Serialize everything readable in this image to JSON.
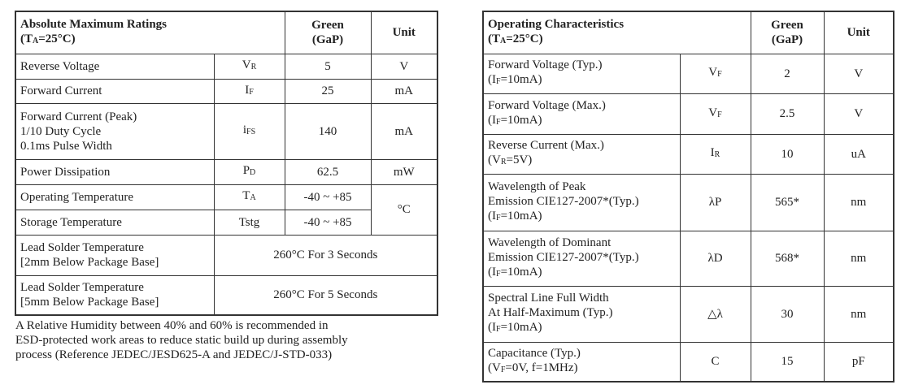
{
  "left": {
    "header": {
      "title": [
        "Absolute Maximum Ratings",
        [
          "(T",
          "A",
          "=25°C)"
        ]
      ],
      "green": [
        "Green",
        "(GaP)"
      ],
      "unit": [
        "Unit"
      ]
    },
    "rows": [
      {
        "param": [
          "Reverse Voltage"
        ],
        "symbol": [
          [
            "V",
            "R"
          ]
        ],
        "value": [
          "5"
        ],
        "unit": [
          "V"
        ]
      },
      {
        "param": [
          "Forward Current"
        ],
        "symbol": [
          [
            "I",
            "F"
          ]
        ],
        "value": [
          "25"
        ],
        "unit": [
          "mA"
        ]
      },
      {
        "param": [
          "Forward Current (Peak)",
          "1/10 Duty Cycle",
          "0.1ms Pulse Width"
        ],
        "symbol": [
          [
            "i",
            "FS"
          ]
        ],
        "value": [
          "140"
        ],
        "unit": [
          "mA"
        ]
      },
      {
        "param": [
          "Power Dissipation"
        ],
        "symbol": [
          [
            "P",
            "D"
          ]
        ],
        "value": [
          "62.5"
        ],
        "unit": [
          "mW"
        ]
      },
      {
        "param": [
          "Operating Temperature"
        ],
        "symbol": [
          [
            "T",
            "A"
          ]
        ],
        "value": [
          "-40 ~ +85"
        ],
        "unit": [
          "°C"
        ]
      },
      {
        "param": [
          "Storage Temperature"
        ],
        "symbol": [
          "Tstg"
        ],
        "value": [
          "-40 ~ +85"
        ]
      },
      {
        "param": [
          "Lead Solder Temperature",
          "[2mm Below Package Base]"
        ],
        "value": [
          "260°C For 3 Seconds"
        ]
      },
      {
        "param": [
          "Lead Solder Temperature",
          "[5mm Below Package Base]"
        ],
        "value": [
          "260°C For 5 Seconds"
        ]
      }
    ]
  },
  "note": [
    "A Relative Humidity between 40% and 60% is recommended in",
    "ESD-protected work areas to reduce static build up during assembly",
    "process (Reference JEDEC/JESD625-A and JEDEC/J-STD-033)"
  ],
  "right": {
    "header": {
      "title": [
        "Operating Characteristics",
        [
          "(T",
          "A",
          "=25°C)"
        ]
      ],
      "green": [
        "Green",
        "(GaP)"
      ],
      "unit": [
        "Unit"
      ]
    },
    "rows": [
      {
        "param": [
          "Forward Voltage (Typ.)",
          [
            "(I",
            "F",
            "=10mA)"
          ]
        ],
        "symbol": [
          [
            "V",
            "F"
          ]
        ],
        "value": [
          "2"
        ],
        "unit": [
          "V"
        ]
      },
      {
        "param": [
          "Forward Voltage (Max.)",
          [
            "(I",
            "F",
            "=10mA)"
          ]
        ],
        "symbol": [
          [
            "V",
            "F"
          ]
        ],
        "value": [
          "2.5"
        ],
        "unit": [
          "V"
        ]
      },
      {
        "param": [
          "Reverse Current (Max.)",
          [
            "(V",
            "R",
            "=5V)"
          ]
        ],
        "symbol": [
          [
            "I",
            "R"
          ]
        ],
        "value": [
          "10"
        ],
        "unit": [
          "uA"
        ]
      },
      {
        "param": [
          "Wavelength of Peak",
          "Emission CIE127-2007*(Typ.)",
          [
            "(I",
            "F",
            "=10mA)"
          ]
        ],
        "symbol": [
          "λP"
        ],
        "value": [
          "565*"
        ],
        "unit": [
          "nm"
        ]
      },
      {
        "param": [
          "Wavelength of Dominant",
          "Emission CIE127-2007*(Typ.)",
          [
            "(I",
            "F",
            "=10mA)"
          ]
        ],
        "symbol": [
          "λD"
        ],
        "value": [
          "568*"
        ],
        "unit": [
          "nm"
        ]
      },
      {
        "param": [
          "Spectral Line Full Width",
          "At Half-Maximum (Typ.)",
          [
            "(I",
            "F",
            "=10mA)"
          ]
        ],
        "symbol": [
          "△λ"
        ],
        "value": [
          "30"
        ],
        "unit": [
          "nm"
        ]
      },
      {
        "param": [
          "Capacitance (Typ.)",
          [
            "(V",
            "F",
            "=0V, f=1MHz)"
          ]
        ],
        "symbol": [
          "C"
        ],
        "value": [
          "15"
        ],
        "unit": [
          "pF"
        ]
      }
    ]
  }
}
